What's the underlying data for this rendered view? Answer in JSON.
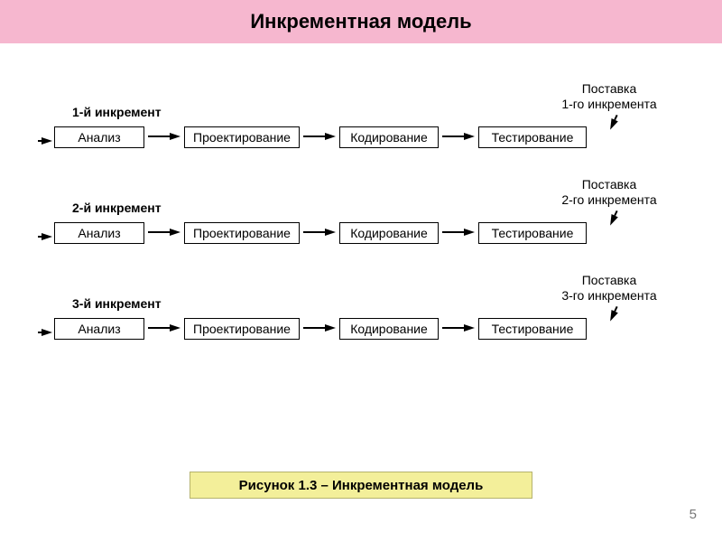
{
  "header": {
    "title": "Инкрементная модель",
    "background_color": "#f6b7cf",
    "text_color": "#000000",
    "fontsize": 22
  },
  "colors": {
    "page_background": "#ffffff",
    "box_border": "#000000",
    "arrow_color": "#000000",
    "text_color": "#000000"
  },
  "diagram": {
    "rows": [
      {
        "label": "1-й инкремент",
        "delivery_line1": "Поставка",
        "delivery_line2": "1-го инкремента",
        "steps": [
          "Анализ",
          "Проектирование",
          "Кодирование",
          "Тестирование"
        ]
      },
      {
        "label": "2-й инкремент",
        "delivery_line1": "Поставка",
        "delivery_line2": "2-го инкремента",
        "steps": [
          "Анализ",
          "Проектирование",
          "Кодирование",
          "Тестирование"
        ]
      },
      {
        "label": "3-й инкремент",
        "delivery_line1": "Поставка",
        "delivery_line2": "3-го инкремента",
        "steps": [
          "Анализ",
          "Проектирование",
          "Кодирование",
          "Тестирование"
        ]
      }
    ],
    "arrow": {
      "shaft_width": 2,
      "head_width": 12,
      "head_height": 8,
      "between_length": 36,
      "into_length": 16
    }
  },
  "caption": {
    "text": "Рисунок 1.3 – Инкрементная модель",
    "background_color": "#f3ef9a",
    "border_color": "#b5b26d",
    "fontsize": 15
  },
  "page_number": "5"
}
